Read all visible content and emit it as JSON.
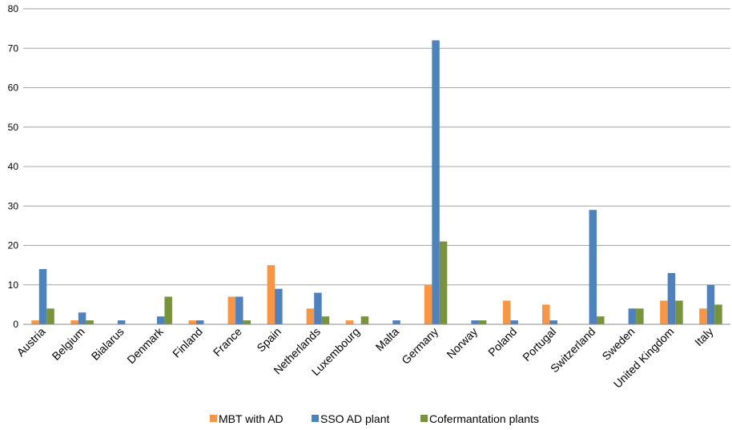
{
  "chart_data": {
    "type": "bar",
    "categories": [
      "Austria",
      "Belgium",
      "Bialarus",
      "Denmark",
      "Finland",
      "France",
      "Spain",
      "Netherlands",
      "Luxembourg",
      "Malta",
      "Germany",
      "Norway",
      "Poland",
      "Portugal",
      "Switzerland",
      "Sweden",
      "United Kingdom",
      "Italy"
    ],
    "series": [
      {
        "name": "MBT with AD",
        "color": "#F79646",
        "values": [
          1,
          1,
          0,
          0,
          1,
          7,
          15,
          4,
          1,
          0,
          10,
          0,
          6,
          5,
          0,
          0,
          6,
          4
        ]
      },
      {
        "name": "SSO AD plant",
        "color": "#4F81BD",
        "values": [
          14,
          3,
          1,
          2,
          1,
          7,
          9,
          8,
          0,
          1,
          72,
          1,
          1,
          1,
          29,
          4,
          13,
          10
        ]
      },
      {
        "name": "Cofermantation plants",
        "color": "#77933C",
        "values": [
          4,
          1,
          0,
          7,
          0,
          1,
          0,
          2,
          2,
          0,
          21,
          1,
          0,
          0,
          2,
          4,
          6,
          5
        ]
      }
    ],
    "ylim": [
      0,
      80
    ],
    "yticks": [
      0,
      10,
      20,
      30,
      40,
      50,
      60,
      70,
      80
    ],
    "grid": true,
    "legend": "bottom",
    "title": "",
    "xlabel": "",
    "ylabel": ""
  }
}
